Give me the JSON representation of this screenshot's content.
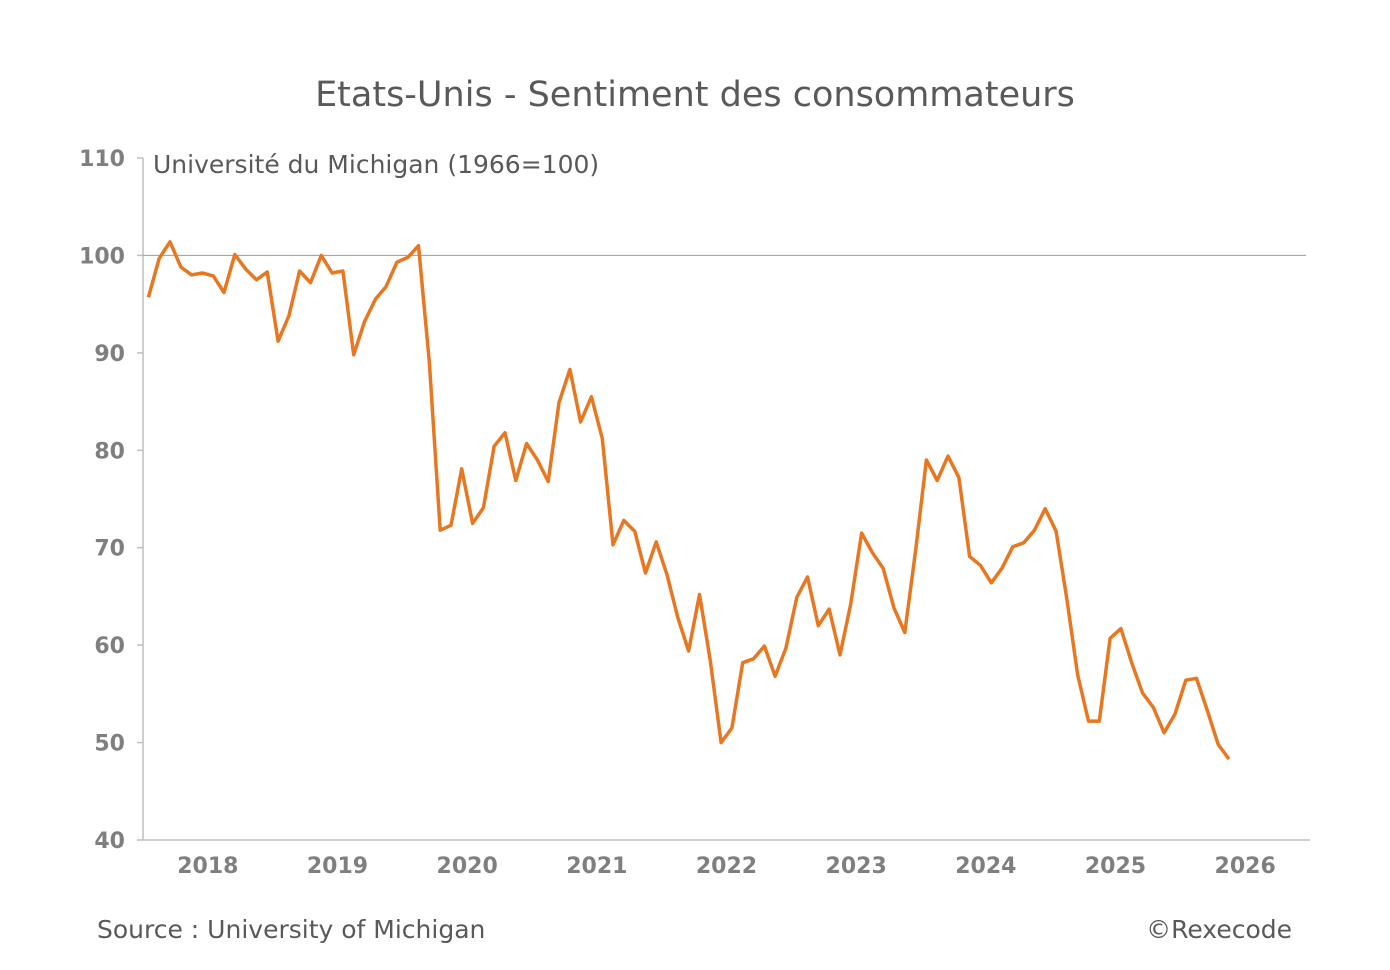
{
  "chart_data": {
    "type": "line",
    "title": "Etats-Unis - Sentiment des consommateurs",
    "subtitle": "Université du Michigan (1966=100)",
    "source": "Source : University of Michigan",
    "credit": "©Rexecode",
    "x": [
      2018.042,
      2018.125,
      2018.208,
      2018.292,
      2018.375,
      2018.458,
      2018.542,
      2018.625,
      2018.708,
      2018.792,
      2018.875,
      2018.958,
      2019.042,
      2019.125,
      2019.208,
      2019.292,
      2019.375,
      2019.458,
      2019.542,
      2019.625,
      2019.708,
      2019.792,
      2019.875,
      2019.958,
      2020.042,
      2020.125,
      2020.208,
      2020.292,
      2020.375,
      2020.458,
      2020.542,
      2020.625,
      2020.708,
      2020.792,
      2020.875,
      2020.958,
      2021.042,
      2021.125,
      2021.208,
      2021.292,
      2021.375,
      2021.458,
      2021.542,
      2021.625,
      2021.708,
      2021.792,
      2021.875,
      2021.958,
      2022.042,
      2022.125,
      2022.208,
      2022.292,
      2022.375,
      2022.458,
      2022.542,
      2022.625,
      2022.708,
      2022.792,
      2022.875,
      2022.958,
      2023.042,
      2023.125,
      2023.208,
      2023.292,
      2023.375,
      2023.458,
      2023.542,
      2023.625,
      2023.708,
      2023.792,
      2023.875,
      2023.958,
      2024.042,
      2024.125,
      2024.208,
      2024.292,
      2024.375,
      2024.458,
      2024.542,
      2024.625,
      2024.708,
      2024.792,
      2024.875,
      2024.958,
      2025.042,
      2025.125,
      2025.208,
      2025.292,
      2025.375,
      2025.458,
      2025.542,
      2025.625,
      2025.708,
      2025.792,
      2025.875,
      2025.958,
      2026.042,
      2026.125,
      2026.208,
      2026.292,
      2026.375
    ],
    "series": [
      {
        "name": "Sentiment des consommateurs",
        "color": "#e87722",
        "values": [
          95.7,
          99.7,
          101.4,
          98.8,
          98.0,
          98.2,
          97.9,
          96.2,
          100.1,
          98.6,
          97.5,
          98.3,
          91.2,
          93.8,
          98.4,
          97.2,
          100.0,
          98.2,
          98.4,
          89.8,
          93.2,
          95.5,
          96.8,
          99.3,
          99.8,
          101.0,
          89.1,
          71.8,
          72.3,
          78.1,
          72.5,
          74.1,
          80.4,
          81.8,
          76.9,
          80.7,
          79.0,
          76.8,
          84.9,
          88.3,
          82.9,
          85.5,
          81.2,
          70.3,
          72.8,
          71.7,
          67.4,
          70.6,
          67.2,
          62.8,
          59.4,
          65.2,
          58.4,
          50.0,
          51.5,
          58.2,
          58.6,
          59.9,
          56.8,
          59.7,
          64.9,
          67.0,
          62.0,
          63.7,
          59.0,
          64.2,
          71.5,
          69.5,
          67.9,
          63.8,
          61.3,
          69.7,
          79.0,
          76.9,
          79.4,
          77.2,
          69.1,
          68.2,
          66.4,
          67.9,
          70.1,
          70.5,
          71.8,
          74.0,
          71.7,
          64.7,
          57.0,
          52.2,
          52.2,
          60.7,
          61.7,
          58.2,
          55.1,
          53.6,
          51.0,
          52.9,
          56.4,
          56.6,
          53.3,
          49.8,
          48.3
        ]
      }
    ],
    "xlim": [
      2018,
      2027
    ],
    "xticks": [
      {
        "value": 2018.5,
        "label": "2018"
      },
      {
        "value": 2019.5,
        "label": "2019"
      },
      {
        "value": 2020.5,
        "label": "2020"
      },
      {
        "value": 2021.5,
        "label": "2021"
      },
      {
        "value": 2022.5,
        "label": "2022"
      },
      {
        "value": 2023.5,
        "label": "2023"
      },
      {
        "value": 2024.5,
        "label": "2024"
      },
      {
        "value": 2025.5,
        "label": "2025"
      },
      {
        "value": 2026.5,
        "label": "2026"
      }
    ],
    "ylim": [
      40,
      110
    ],
    "yticks": [
      40,
      50,
      60,
      70,
      80,
      90,
      100,
      110
    ],
    "reference_line": 100
  }
}
